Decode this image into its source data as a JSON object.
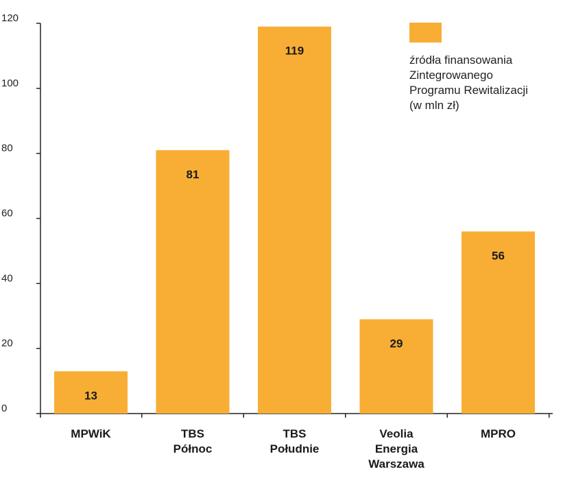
{
  "chart_data": {
    "type": "bar",
    "categories": [
      [
        "MPWiK"
      ],
      [
        "TBS",
        "Północ"
      ],
      [
        "TBS",
        "Południe"
      ],
      [
        "Veolia",
        "Energia",
        "Warszawa"
      ],
      [
        "MPRO"
      ]
    ],
    "values": [
      13,
      81,
      119,
      29,
      56
    ],
    "value_labels": [
      "13",
      "81",
      "119",
      "29",
      "56"
    ],
    "series": [
      {
        "name": "źródła finansowania Zintegrowanego Programu Rewitalizacji (w mln zł)",
        "name_lines": [
          "źródła finansowania",
          "Zintegrowanego",
          "Programu Rewitalizacji",
          "(w mln zł)"
        ],
        "values": [
          13,
          81,
          119,
          29,
          56
        ]
      }
    ],
    "yticks": [
      "0",
      "20",
      "40",
      "60",
      "80",
      "100",
      "120"
    ],
    "ylim": [
      0,
      120
    ],
    "grid": false,
    "legend_position": "top-right",
    "bar_color": "#F8AE35",
    "axis_color": "#222222"
  }
}
